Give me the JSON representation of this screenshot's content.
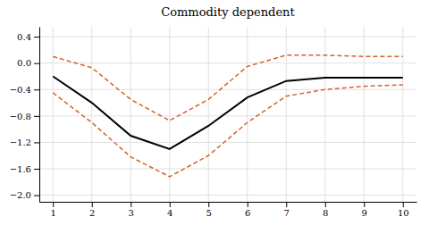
{
  "chart_data": {
    "type": "line",
    "title": "Commodity dependent",
    "x": [
      1,
      2,
      3,
      4,
      5,
      6,
      7,
      8,
      9,
      10
    ],
    "series": [
      {
        "color": "#D4622A",
        "line_style": "dashed",
        "values": [
          0.1,
          -0.07,
          -0.55,
          -0.87,
          -0.55,
          -0.05,
          0.12,
          0.12,
          0.1,
          0.1
        ]
      },
      {
        "color": "#D4622A",
        "line_style": "dashed",
        "values": [
          -0.45,
          -0.9,
          -1.42,
          -1.72,
          -1.4,
          -0.9,
          -0.5,
          -0.4,
          -0.35,
          -0.33
        ]
      },
      {
        "color": "#000000",
        "line_style": "solid",
        "values": [
          -0.2,
          -0.6,
          -1.1,
          -1.3,
          -0.95,
          -0.52,
          -0.27,
          -0.22,
          -0.22,
          -0.22
        ]
      }
    ],
    "xlim": [
      0.65,
      10.35
    ],
    "xticks": [
      1,
      2,
      3,
      4,
      5,
      6,
      7,
      8,
      9,
      10
    ],
    "ylim": [
      -2.1,
      0.55
    ],
    "yticks": [
      0.4,
      {
        "value": 0,
        "label": "0.0"
      },
      {
        "value": -0.4,
        "label": "−0.4"
      },
      {
        "value": -0.8,
        "label": "−0.8"
      },
      {
        "value": -1.2,
        "label": "−1.2"
      },
      {
        "value": -1.6,
        "label": "−1.6"
      },
      {
        "value": -2.0,
        "label": "−2.0"
      }
    ],
    "grid": true
  }
}
